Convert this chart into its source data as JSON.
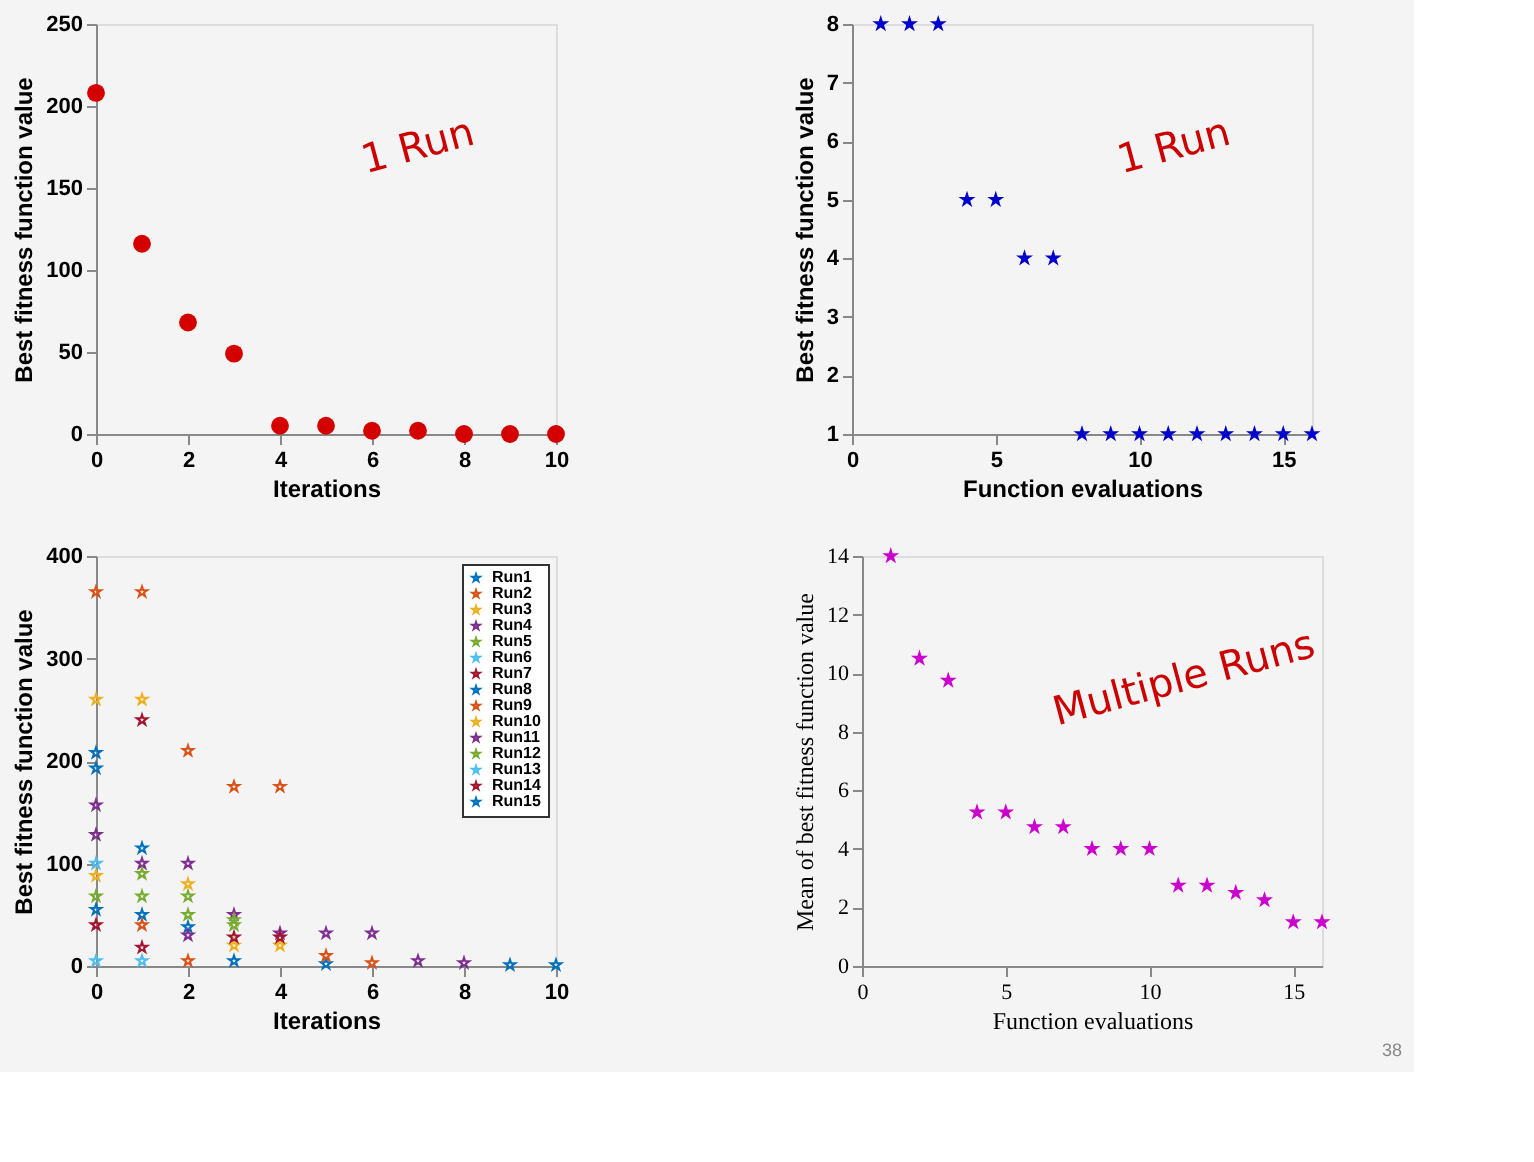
{
  "chart_data": [
    {
      "type": "scatter",
      "xlabel": "Iterations",
      "ylabel": "Best fitness function value",
      "x": [
        0,
        1,
        2,
        3,
        4,
        5,
        6,
        7,
        8,
        9,
        10
      ],
      "series": [
        {
          "color": "#d40000",
          "values": [
            208,
            116,
            68,
            49,
            5,
            5,
            2,
            2,
            0,
            0,
            0
          ]
        }
      ],
      "xlim": [
        0,
        10
      ],
      "xticks": [
        0,
        2,
        4,
        6,
        8,
        10
      ],
      "ylim": [
        0,
        250
      ],
      "yticks": [
        0,
        50,
        100,
        150,
        200,
        250
      ],
      "marker": "circle",
      "grid": false,
      "annotations": [
        "1 Run"
      ]
    },
    {
      "type": "scatter",
      "xlabel": "Function evaluations",
      "ylabel": "Best fitness function value",
      "x": [
        1,
        2,
        3,
        4,
        5,
        6,
        7,
        8,
        9,
        10,
        11,
        12,
        13,
        14,
        15,
        16
      ],
      "series": [
        {
          "color": "#0000cc",
          "values": [
            8,
            8,
            8,
            5,
            5,
            4,
            4,
            1,
            1,
            1,
            1,
            1,
            1,
            1,
            1,
            1
          ]
        }
      ],
      "xlim": [
        0,
        16
      ],
      "xticks": [
        0,
        5,
        10,
        15
      ],
      "ylim": [
        1,
        8
      ],
      "yticks": [
        1,
        2,
        3,
        4,
        5,
        6,
        7,
        8
      ],
      "marker": "star",
      "grid": false,
      "annotations": [
        "1 Run"
      ]
    },
    {
      "type": "scatter",
      "xlabel": "Iterations",
      "ylabel": "Best fitness function value",
      "x": [
        0,
        1,
        2,
        3,
        4,
        5,
        6,
        7,
        8,
        9,
        10
      ],
      "series": [
        {
          "name": "Run1",
          "color": "#0072bd",
          "values": [
            55,
            50,
            null,
            5,
            null,
            2,
            null,
            null,
            null,
            1,
            1
          ]
        },
        {
          "name": "Run2",
          "color": "#d95319",
          "values": [
            365,
            365,
            210,
            175,
            175,
            10,
            3,
            null,
            null,
            null,
            null
          ]
        },
        {
          "name": "Run3",
          "color": "#edb120",
          "values": [
            260,
            260,
            80,
            20,
            20,
            null,
            null,
            null,
            null,
            null,
            null
          ]
        },
        {
          "name": "Run4",
          "color": "#7e2f8e",
          "values": [
            157,
            100,
            100,
            50,
            32,
            32,
            32,
            5,
            3,
            null,
            null
          ]
        },
        {
          "name": "Run5",
          "color": "#77ac30",
          "values": [
            68,
            68,
            68,
            40,
            null,
            null,
            null,
            null,
            null,
            null,
            null
          ]
        },
        {
          "name": "Run6",
          "color": "#4dbeee",
          "values": [
            5,
            5,
            null,
            null,
            null,
            null,
            null,
            null,
            null,
            null,
            null
          ]
        },
        {
          "name": "Run7",
          "color": "#a2142f",
          "values": [
            40,
            18,
            null,
            28,
            28,
            null,
            null,
            null,
            null,
            null,
            null
          ]
        },
        {
          "name": "Run8",
          "color": "#0072bd",
          "values": [
            208,
            115,
            38,
            null,
            null,
            null,
            null,
            null,
            null,
            null,
            null
          ]
        },
        {
          "name": "Run9",
          "color": "#d95319",
          "values": [
            null,
            40,
            5,
            null,
            null,
            null,
            null,
            null,
            null,
            null,
            null
          ]
        },
        {
          "name": "Run10",
          "color": "#edb120",
          "values": [
            88,
            null,
            null,
            null,
            null,
            null,
            null,
            null,
            null,
            null,
            null
          ]
        },
        {
          "name": "Run11",
          "color": "#7e2f8e",
          "values": [
            128,
            null,
            30,
            null,
            null,
            null,
            null,
            null,
            null,
            null,
            null
          ]
        },
        {
          "name": "Run12",
          "color": "#77ac30",
          "values": [
            null,
            90,
            50,
            45,
            null,
            null,
            null,
            null,
            null,
            null,
            null
          ]
        },
        {
          "name": "Run13",
          "color": "#4dbeee",
          "values": [
            100,
            null,
            null,
            null,
            null,
            null,
            null,
            null,
            null,
            null,
            null
          ]
        },
        {
          "name": "Run14",
          "color": "#a2142f",
          "values": [
            null,
            240,
            null,
            null,
            null,
            null,
            null,
            null,
            null,
            null,
            null
          ]
        },
        {
          "name": "Run15",
          "color": "#0072bd",
          "values": [
            193,
            null,
            null,
            null,
            null,
            null,
            null,
            null,
            null,
            null,
            null
          ]
        }
      ],
      "xlim": [
        0,
        10
      ],
      "xticks": [
        0,
        2,
        4,
        6,
        8,
        10
      ],
      "ylim": [
        0,
        400
      ],
      "yticks": [
        0,
        100,
        200,
        300,
        400
      ],
      "marker": "star",
      "grid": false,
      "legend": "top right"
    },
    {
      "type": "scatter",
      "xlabel": "Function evaluations",
      "ylabel": "Mean of best fitness function value",
      "x": [
        1,
        2,
        3,
        4,
        5,
        6,
        7,
        8,
        9,
        10,
        11,
        12,
        13,
        14,
        15,
        16
      ],
      "series": [
        {
          "color": "#cc00cc",
          "values": [
            14,
            10.5,
            9.75,
            5.25,
            5.25,
            4.75,
            4.75,
            4,
            4,
            4,
            2.75,
            2.75,
            2.5,
            2.25,
            1.5,
            1.5
          ]
        }
      ],
      "xlim": [
        0,
        16
      ],
      "xticks": [
        0,
        5,
        10,
        15
      ],
      "ylim": [
        0,
        14
      ],
      "yticks": [
        0,
        2,
        4,
        6,
        8,
        10,
        12,
        14
      ],
      "marker": "star",
      "grid": false,
      "annotations": [
        "Multiple Runs",
        "38"
      ]
    }
  ]
}
